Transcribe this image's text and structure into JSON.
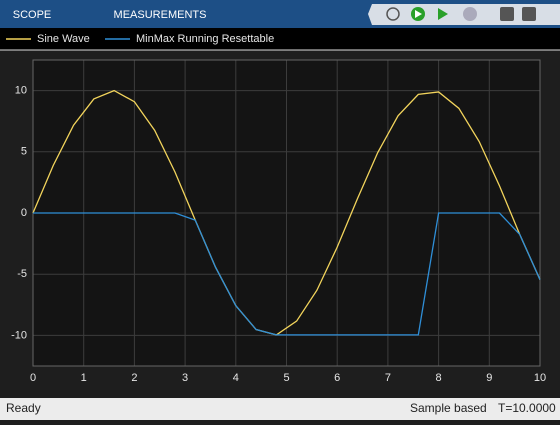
{
  "toolbar": {
    "tabs": [
      "SCOPE",
      "MEASUREMENTS"
    ]
  },
  "chart_data": {
    "type": "line",
    "x": [
      0,
      0.4,
      0.8,
      1.2,
      1.6,
      2.0,
      2.4,
      2.8,
      3.2,
      3.6,
      4.0,
      4.4,
      4.8,
      5.2,
      5.6,
      6.0,
      6.4,
      6.8,
      7.2,
      7.6,
      8.0,
      8.4,
      8.8,
      9.2,
      9.6,
      10
    ],
    "series": [
      {
        "name": "Sine Wave",
        "color": "#f2d45c",
        "values": [
          0,
          3.89,
          7.17,
          9.32,
          10.0,
          9.09,
          6.75,
          3.35,
          -0.58,
          -4.43,
          -7.57,
          -9.52,
          -9.96,
          -8.83,
          -6.31,
          -2.79,
          1.17,
          4.94,
          7.94,
          9.69,
          9.89,
          8.55,
          5.84,
          2.23,
          -1.75,
          -5.44
        ]
      },
      {
        "name": "MinMax Running Resettable",
        "color": "#2f8fd8",
        "values": [
          0,
          0,
          0,
          0,
          0,
          0,
          0,
          0,
          -0.58,
          -4.43,
          -7.57,
          -9.52,
          -9.96,
          -9.96,
          -9.96,
          -9.96,
          -9.96,
          -9.96,
          -9.96,
          -9.96,
          0,
          0,
          0,
          0,
          -1.75,
          -5.44
        ]
      }
    ],
    "xlim": [
      0,
      10
    ],
    "xticks": [
      0,
      1,
      2,
      3,
      4,
      5,
      6,
      7,
      8,
      9,
      10
    ],
    "ylim": [
      -12.5,
      12.5
    ],
    "yticks": [
      -10,
      -5,
      0,
      5,
      10
    ],
    "grid": true
  },
  "status": {
    "state": "Ready",
    "mode": "Sample based",
    "time": "T=10.0000"
  }
}
